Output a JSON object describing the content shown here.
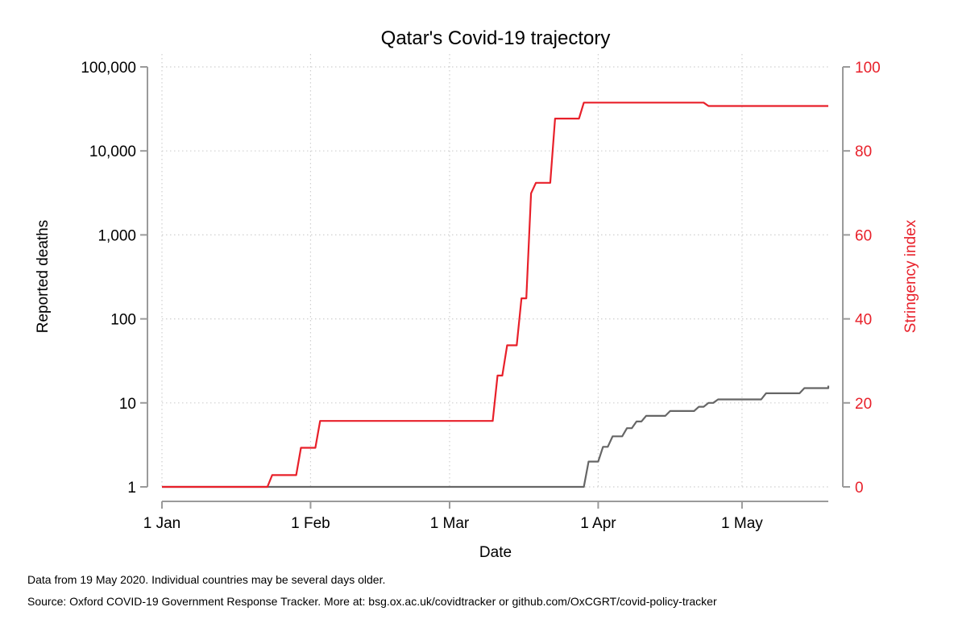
{
  "chart_data": {
    "type": "line",
    "title": "Qatar's Covid-19 trajectory",
    "xlabel": "Date",
    "ylabel_left": "Reported deaths",
    "ylabel_right": "Stringency index",
    "x_ticks": [
      "1 Jan",
      "1 Feb",
      "1 Mar",
      "1 Apr",
      "1 May"
    ],
    "x_tick_days": [
      1,
      32,
      61,
      92,
      122
    ],
    "xlim_days": [
      1,
      140
    ],
    "y_left_scale": "log",
    "y_left_ticks": [
      "1",
      "10",
      "100",
      "1,000",
      "10,000",
      "100,000"
    ],
    "y_left_tick_values": [
      1,
      10,
      100,
      1000,
      10000,
      100000
    ],
    "ylim_left": [
      1,
      100000
    ],
    "y_right_ticks": [
      "0",
      "20",
      "40",
      "60",
      "80",
      "100"
    ],
    "y_right_tick_values": [
      0,
      20,
      40,
      60,
      80,
      100
    ],
    "ylim_right": [
      0,
      100
    ],
    "grid": true,
    "colors": {
      "deaths": "#666666",
      "stringency": "#e8202a",
      "axis": "#9a9a9a",
      "grid": "#cfcfcf"
    },
    "series": [
      {
        "name": "Reported deaths",
        "axis": "left",
        "step": true,
        "points": [
          [
            1,
            1
          ],
          [
            89,
            1
          ],
          [
            90,
            2
          ],
          [
            92,
            2
          ],
          [
            93,
            3
          ],
          [
            94,
            3
          ],
          [
            95,
            4
          ],
          [
            97,
            4
          ],
          [
            98,
            5
          ],
          [
            99,
            5
          ],
          [
            100,
            6
          ],
          [
            101,
            6
          ],
          [
            102,
            7
          ],
          [
            106,
            7
          ],
          [
            107,
            8
          ],
          [
            112,
            8
          ],
          [
            113,
            9
          ],
          [
            114,
            9
          ],
          [
            115,
            10
          ],
          [
            116,
            10
          ],
          [
            117,
            11
          ],
          [
            126,
            11
          ],
          [
            127,
            13
          ],
          [
            134,
            13
          ],
          [
            135,
            15
          ],
          [
            140,
            15
          ],
          [
            140,
            16
          ]
        ]
      },
      {
        "name": "Stringency index",
        "axis": "right",
        "step": true,
        "points": [
          [
            1,
            0
          ],
          [
            23,
            0
          ],
          [
            24,
            2.8
          ],
          [
            29,
            2.8
          ],
          [
            30,
            9.3
          ],
          [
            33,
            9.3
          ],
          [
            34,
            15.7
          ],
          [
            70,
            15.7
          ],
          [
            71,
            26.5
          ],
          [
            72,
            26.5
          ],
          [
            73,
            33.7
          ],
          [
            75,
            33.7
          ],
          [
            76,
            44.9
          ],
          [
            77,
            44.9
          ],
          [
            78,
            69.9
          ],
          [
            79,
            72.4
          ],
          [
            82,
            72.4
          ],
          [
            83,
            87.7
          ],
          [
            88,
            87.7
          ],
          [
            89,
            91.5
          ],
          [
            114,
            91.5
          ],
          [
            115,
            90.7
          ],
          [
            140,
            90.7
          ]
        ]
      }
    ]
  },
  "notes": {
    "line1": "Data from 19 May 2020. Individual countries may be several days older.",
    "line2": "Source: Oxford COVID-19 Government Response Tracker. More at: bsg.ox.ac.uk/covidtracker or github.com/OxCGRT/covid-policy-tracker"
  }
}
